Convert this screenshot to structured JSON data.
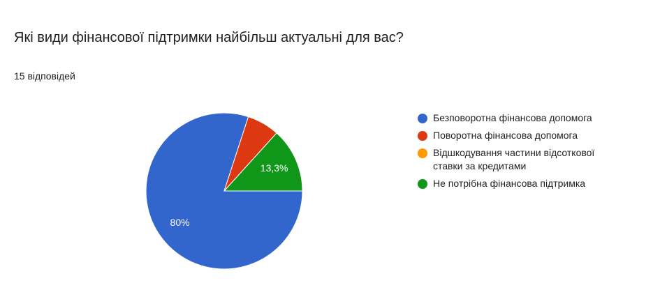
{
  "chart_data": {
    "type": "pie",
    "title": "Які види фінансової підтримки найбільш актуальні для вас?",
    "subtitle": "15 відповідей",
    "categories": [
      "Безповоротна фінансова допомога",
      "Поворотна фінансова допомога",
      "Відшкодування частини відсоткової ставки за кредитами",
      "Не потрібна фінансова підтримка"
    ],
    "values": [
      80,
      6.7,
      0,
      13.3
    ],
    "value_labels": [
      "80%",
      null,
      null,
      "13,3%"
    ],
    "colors": [
      "#3366cc",
      "#dc3912",
      "#ff9900",
      "#109618"
    ],
    "legend": "right"
  }
}
